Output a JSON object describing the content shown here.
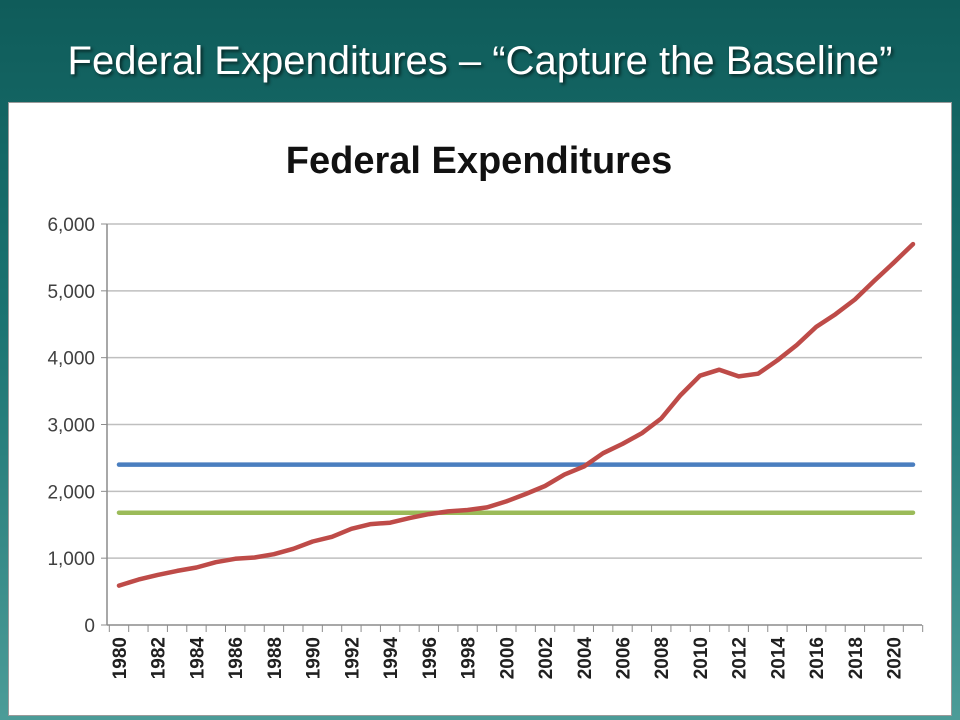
{
  "slide": {
    "title": "Federal Expenditures – “Capture the Baseline”"
  },
  "colors": {
    "expenditures_line": "#be4b48",
    "blue_line": "#4a7ebf",
    "green_line": "#9bbb59",
    "grid": "#bfbfbf",
    "axis": "#8c8c8c"
  },
  "chart_data": {
    "type": "line",
    "title": "Federal Expenditures",
    "xlabel": "",
    "ylabel": "",
    "ylim": [
      0,
      6000
    ],
    "yticks": [
      "0",
      "1,000",
      "2,000",
      "3,000",
      "4,000",
      "5,000",
      "6,000"
    ],
    "ytick_values": [
      0,
      1000,
      2000,
      3000,
      4000,
      5000,
      6000
    ],
    "xlim": [
      1980,
      2021
    ],
    "xticks": [
      "1980",
      "1982",
      "1984",
      "1986",
      "1988",
      "1990",
      "1992",
      "1994",
      "1996",
      "1998",
      "2000",
      "2002",
      "2004",
      "2006",
      "2008",
      "2010",
      "2012",
      "2014",
      "2016",
      "2018",
      "2020"
    ],
    "grid": true,
    "legend": "none",
    "series": [
      {
        "x": [
          1980,
          1981,
          1982,
          1983,
          1984,
          1985,
          1986,
          1987,
          1988,
          1989,
          1990,
          1991,
          1992,
          1993,
          1994,
          1995,
          1996,
          1997,
          1998,
          1999,
          2000,
          2001,
          2002,
          2003,
          2004,
          2005,
          2006,
          2007,
          2008,
          2009,
          2010,
          2011,
          2012,
          2013,
          2014,
          2015,
          2016,
          2017,
          2018,
          2019,
          2020,
          2021
        ],
        "values": [
          590,
          680,
          750,
          810,
          860,
          940,
          990,
          1010,
          1060,
          1140,
          1250,
          1320,
          1440,
          1510,
          1530,
          1600,
          1660,
          1700,
          1720,
          1760,
          1850,
          1960,
          2080,
          2250,
          2370,
          2570,
          2710,
          2870,
          3090,
          3440,
          3730,
          3820,
          3720,
          3760,
          3960,
          4190,
          4460,
          4650,
          4870,
          5150,
          5420,
          5700
        ],
        "color": "#be4b48"
      },
      {
        "x": [
          1980,
          2021
        ],
        "values": [
          2400,
          2400
        ],
        "color": "#4a7ebf"
      },
      {
        "x": [
          1980,
          2021
        ],
        "values": [
          1680,
          1680
        ],
        "color": "#9bbb59"
      }
    ]
  }
}
